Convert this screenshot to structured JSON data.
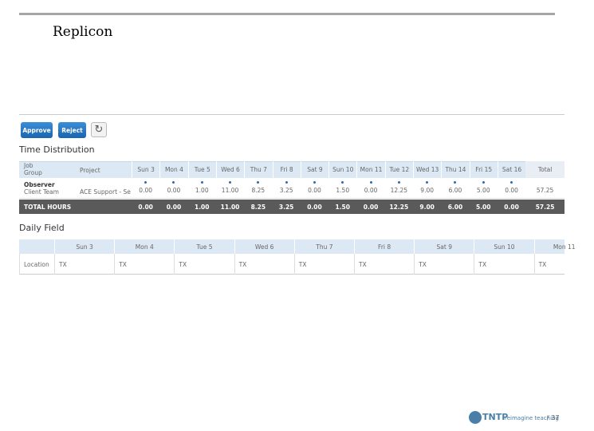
{
  "title": "Replicon",
  "buttons": [
    "Approve",
    "Reject"
  ],
  "time_distribution": {
    "heading": "Time Distribution",
    "header": {
      "job": "Job",
      "group": "Group",
      "project": "Project",
      "days": [
        "Sun 3",
        "Mon 4",
        "Tue 5",
        "Wed 6",
        "Thu 7",
        "Fri 8",
        "Sat 9",
        "Sun 10",
        "Mon 11",
        "Tue 12",
        "Wed 13",
        "Thu 14",
        "Fri 15",
        "Sat 16"
      ],
      "total": "Total"
    },
    "rows": [
      {
        "job": "Observer",
        "group": "Client Team",
        "project": "ACE Support - Se",
        "values": [
          "0.00",
          "0.00",
          "1.00",
          "11.00",
          "8.25",
          "3.25",
          "0.00",
          "1.50",
          "0.00",
          "12.25",
          "9.00",
          "6.00",
          "5.00",
          "0.00"
        ],
        "total": "57.25"
      }
    ],
    "total_row": {
      "label": "TOTAL HOURS",
      "values": [
        "0.00",
        "0.00",
        "1.00",
        "11.00",
        "8.25",
        "3.25",
        "0.00",
        "1.50",
        "0.00",
        "12.25",
        "9.00",
        "6.00",
        "5.00",
        "0.00"
      ],
      "total": "57.25"
    }
  },
  "daily_field": {
    "heading": "Daily Field",
    "days": [
      "Sun 3",
      "Mon 4",
      "Tue 5",
      "Wed 6",
      "Thu 7",
      "Fri 8",
      "Sat 9",
      "Sun 10",
      "Mon 11"
    ],
    "rows": [
      {
        "label": "Location",
        "values": [
          "TX",
          "TX",
          "TX",
          "TX",
          "TX",
          "TX",
          "TX",
          "TX",
          "TX"
        ]
      }
    ]
  },
  "footer": {
    "logo": "TNTP",
    "tagline": "reimagine teaching",
    "page": "/ 37"
  }
}
